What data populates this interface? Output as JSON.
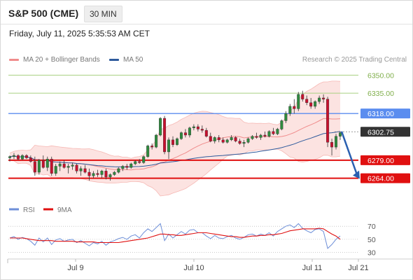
{
  "header": {
    "title": "S&P 500 (CME)",
    "timeframe": "30 MIN"
  },
  "datetime": "Friday, July 11, 2025 5:35:53 AM CET",
  "legend": {
    "ma20": {
      "label": "MA 20 + Bollinger Bands",
      "color": "#f08c8c"
    },
    "ma50": {
      "label": "MA 50",
      "color": "#2e5a9c"
    },
    "rsi": {
      "label": "RSI",
      "color": "#6e8fd8"
    },
    "rsi_ma": {
      "label": "9MA",
      "color": "#e01010"
    }
  },
  "copyright": "Research © 2025 Trading Central",
  "levels": [
    {
      "value": 6350.0,
      "label": "6350.00",
      "style": "target"
    },
    {
      "value": 6335.0,
      "label": "6335.00",
      "style": "target"
    },
    {
      "value": 6318.0,
      "label": "6318.00",
      "style": "pivot"
    },
    {
      "value": 6302.75,
      "label": "6302.75",
      "style": "last"
    },
    {
      "value": 6279.0,
      "label": "6279.00",
      "style": "support"
    },
    {
      "value": 6264.0,
      "label": "6264.00",
      "style": "support"
    }
  ],
  "colors": {
    "up": "#2e8b3e",
    "down": "#c8102e",
    "target": "#a8d080",
    "pivot": "#5b8def",
    "support": "#e01010",
    "last": "#333333",
    "forecast": "#2a5fb0"
  },
  "chart_data": {
    "type": "candlestick",
    "price_ylim": [
      6255,
      6352
    ],
    "x_ticks": [
      "Jul 9",
      "Jul 10",
      "Jul 11",
      "Jul 21"
    ],
    "candles": [
      [
        6281,
        6283,
        6278,
        6282
      ],
      [
        6282,
        6285,
        6280,
        6283
      ],
      [
        6283,
        6284,
        6279,
        6280
      ],
      [
        6280,
        6284,
        6279,
        6283
      ],
      [
        6283,
        6284,
        6280,
        6281
      ],
      [
        6281,
        6283,
        6277,
        6278
      ],
      [
        6278,
        6282,
        6266,
        6269
      ],
      [
        6269,
        6280,
        6267,
        6279
      ],
      [
        6279,
        6283,
        6272,
        6273
      ],
      [
        6273,
        6282,
        6270,
        6280
      ],
      [
        6280,
        6282,
        6266,
        6268
      ],
      [
        6268,
        6276,
        6266,
        6274
      ],
      [
        6274,
        6278,
        6270,
        6276
      ],
      [
        6276,
        6279,
        6272,
        6273
      ],
      [
        6273,
        6276,
        6268,
        6274
      ],
      [
        6274,
        6277,
        6271,
        6275
      ],
      [
        6275,
        6276,
        6268,
        6270
      ],
      [
        6270,
        6274,
        6266,
        6272
      ],
      [
        6272,
        6275,
        6268,
        6269
      ],
      [
        6269,
        6272,
        6262,
        6266
      ],
      [
        6266,
        6270,
        6264,
        6268
      ],
      [
        6268,
        6271,
        6265,
        6267
      ],
      [
        6267,
        6271,
        6264,
        6270
      ],
      [
        6270,
        6272,
        6263,
        6265
      ],
      [
        6265,
        6268,
        6262,
        6267
      ],
      [
        6267,
        6270,
        6266,
        6269
      ],
      [
        6269,
        6273,
        6268,
        6272
      ],
      [
        6272,
        6275,
        6270,
        6274
      ],
      [
        6274,
        6276,
        6271,
        6273
      ],
      [
        6273,
        6277,
        6272,
        6276
      ],
      [
        6276,
        6279,
        6275,
        6278
      ],
      [
        6278,
        6280,
        6276,
        6277
      ],
      [
        6277,
        6283,
        6276,
        6282
      ],
      [
        6282,
        6292,
        6281,
        6291
      ],
      [
        6291,
        6293,
        6288,
        6290
      ],
      [
        6290,
        6301,
        6289,
        6300
      ],
      [
        6300,
        6315,
        6299,
        6314
      ],
      [
        6314,
        6316,
        6284,
        6286
      ],
      [
        6286,
        6298,
        6280,
        6296
      ],
      [
        6296,
        6299,
        6290,
        6292
      ],
      [
        6292,
        6298,
        6291,
        6297
      ],
      [
        6297,
        6303,
        6296,
        6302
      ],
      [
        6302,
        6305,
        6298,
        6300
      ],
      [
        6300,
        6307,
        6298,
        6306
      ],
      [
        6306,
        6309,
        6304,
        6307
      ],
      [
        6307,
        6309,
        6303,
        6305
      ],
      [
        6305,
        6308,
        6302,
        6304
      ],
      [
        6304,
        6306,
        6298,
        6299
      ],
      [
        6299,
        6302,
        6294,
        6295
      ],
      [
        6295,
        6299,
        6293,
        6298
      ],
      [
        6298,
        6300,
        6294,
        6296
      ],
      [
        6296,
        6298,
        6293,
        6294
      ],
      [
        6294,
        6297,
        6293,
        6296
      ],
      [
        6296,
        6300,
        6295,
        6298
      ],
      [
        6298,
        6299,
        6294,
        6295
      ],
      [
        6295,
        6297,
        6292,
        6293
      ],
      [
        6293,
        6296,
        6290,
        6294
      ],
      [
        6294,
        6298,
        6293,
        6297
      ],
      [
        6297,
        6300,
        6296,
        6299
      ],
      [
        6299,
        6302,
        6297,
        6298
      ],
      [
        6298,
        6301,
        6296,
        6300
      ],
      [
        6300,
        6303,
        6298,
        6299
      ],
      [
        6299,
        6304,
        6298,
        6303
      ],
      [
        6303,
        6306,
        6300,
        6301
      ],
      [
        6301,
        6306,
        6300,
        6305
      ],
      [
        6305,
        6313,
        6304,
        6312
      ],
      [
        6312,
        6320,
        6310,
        6318
      ],
      [
        6318,
        6326,
        6316,
        6324
      ],
      [
        6324,
        6330,
        6318,
        6322
      ],
      [
        6322,
        6336,
        6320,
        6334
      ],
      [
        6334,
        6337,
        6328,
        6330
      ],
      [
        6330,
        6333,
        6325,
        6327
      ],
      [
        6327,
        6331,
        6322,
        6324
      ],
      [
        6324,
        6329,
        6322,
        6328
      ],
      [
        6328,
        6333,
        6326,
        6331
      ],
      [
        6331,
        6334,
        6327,
        6330
      ],
      [
        6330,
        6332,
        6290,
        6294
      ],
      [
        6294,
        6297,
        6283,
        6290
      ],
      [
        6290,
        6301,
        6288,
        6299
      ],
      [
        6299,
        6303,
        6296,
        6302
      ]
    ],
    "forecast_arrow": {
      "from": 6303,
      "to": 6264
    },
    "rsi": {
      "yticks": [
        70,
        50,
        30
      ],
      "ylim": [
        22,
        82
      ],
      "values": [
        52,
        54,
        50,
        53,
        51,
        47,
        41,
        52,
        46,
        52,
        42,
        49,
        51,
        47,
        49,
        50,
        45,
        48,
        44,
        40,
        45,
        43,
        47,
        41,
        46,
        48,
        51,
        53,
        50,
        55,
        57,
        52,
        60,
        66,
        62,
        68,
        74,
        48,
        58,
        52,
        57,
        62,
        58,
        64,
        65,
        60,
        60,
        55,
        51,
        56,
        52,
        51,
        54,
        56,
        52,
        50,
        53,
        57,
        58,
        55,
        58,
        56,
        60,
        55,
        62,
        66,
        70,
        72,
        68,
        74,
        67,
        63,
        60,
        65,
        66,
        62,
        36,
        42,
        50,
        55
      ],
      "ma": [
        52,
        52,
        52,
        52,
        51,
        50,
        49,
        48,
        48,
        48,
        48,
        47,
        47,
        47,
        47,
        47,
        46,
        46,
        46,
        46,
        46,
        45,
        45,
        45,
        45,
        45,
        45,
        46,
        47,
        48,
        49,
        50,
        51,
        52,
        54,
        56,
        58,
        58,
        57,
        57,
        56,
        56,
        57,
        58,
        59,
        60,
        60,
        60,
        59,
        58,
        57,
        56,
        55,
        54,
        54,
        53,
        53,
        54,
        55,
        55,
        56,
        56,
        57,
        57,
        58,
        59,
        61,
        63,
        64,
        65,
        66,
        66,
        66,
        66,
        67,
        66,
        62,
        58,
        55,
        50
      ]
    }
  }
}
